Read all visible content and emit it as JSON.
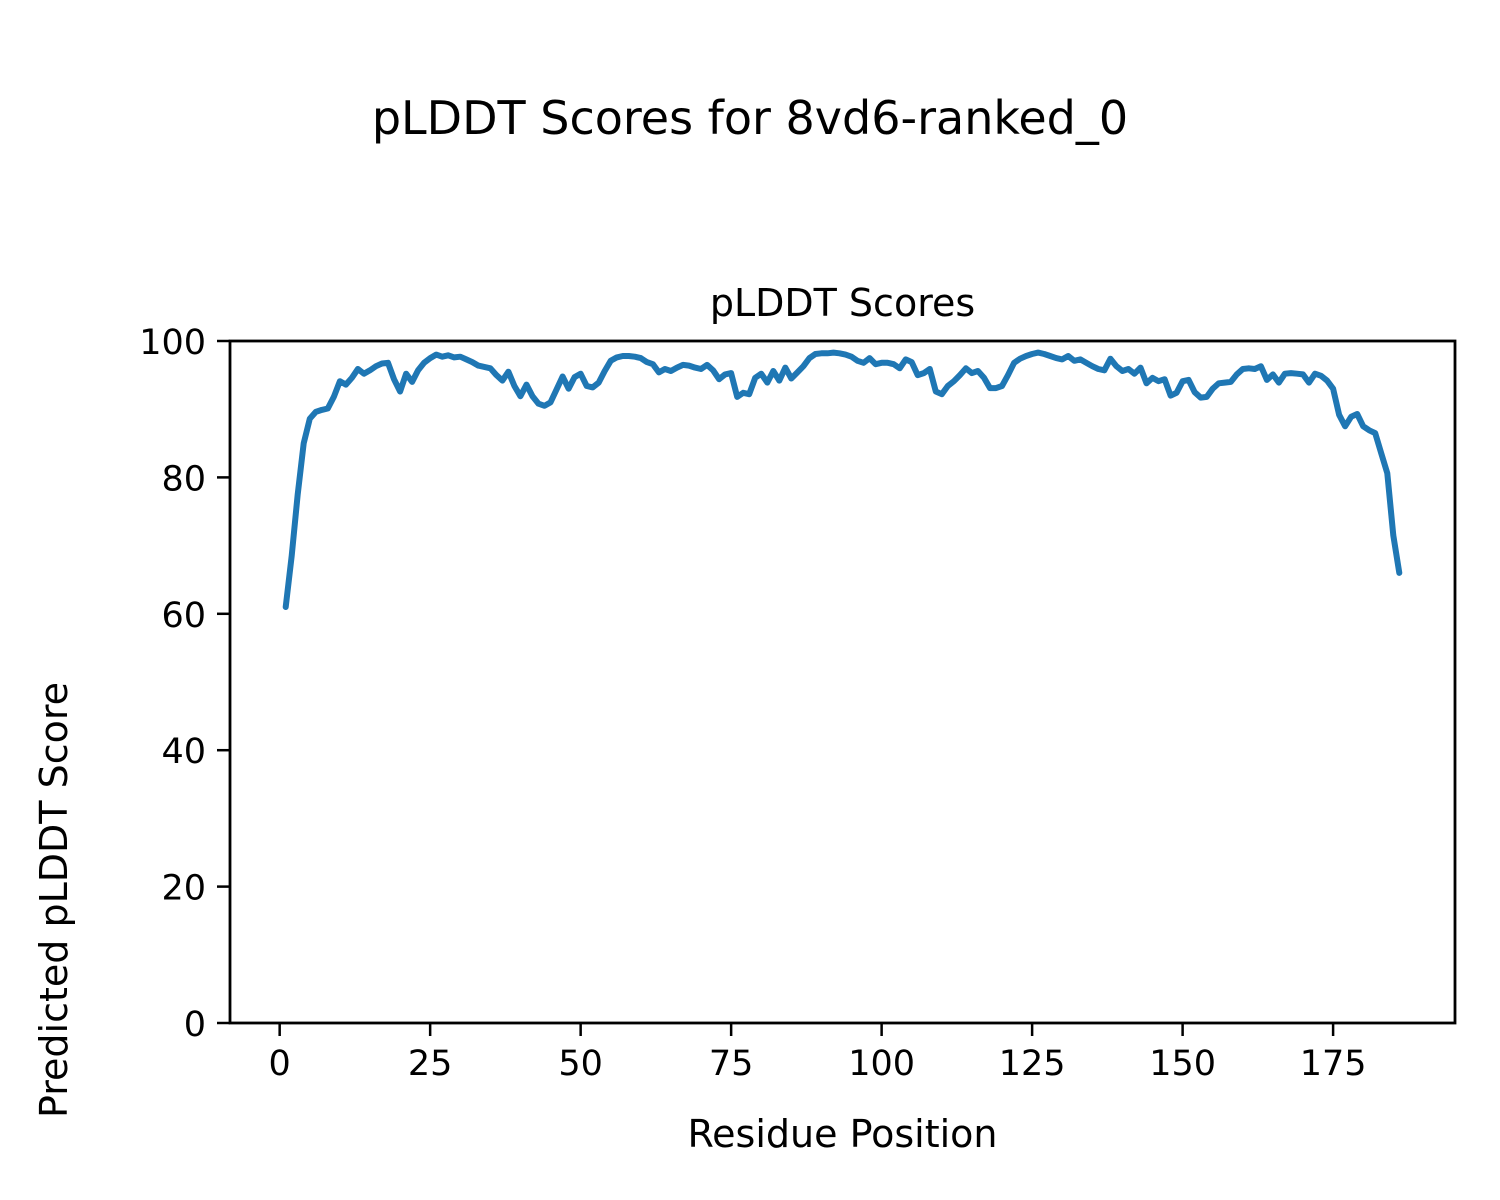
{
  "chart_data": {
    "type": "line",
    "title": "pLDDT Scores for 8vd6-ranked_0",
    "axes_title": "pLDDT Scores",
    "xlabel": "Residue Position",
    "ylabel": "Predicted pLDDT Score",
    "x_ticks": [
      0,
      25,
      50,
      75,
      100,
      125,
      150,
      175
    ],
    "y_ticks": [
      0,
      20,
      40,
      60,
      80,
      100
    ],
    "xlim": [
      -8.25,
      195.25
    ],
    "ylim": [
      0,
      100
    ],
    "grid": false,
    "legend": "none",
    "line_color": "#1f77b4",
    "axis_color": "#000000",
    "background": "#ffffff",
    "series": [
      {
        "name": "pLDDT",
        "x_start": 1,
        "x_step": 1,
        "y": [
          61.0,
          68.5,
          77.5,
          85.0,
          88.6,
          89.6,
          89.9,
          90.1,
          91.8,
          94.1,
          93.6,
          94.6,
          95.9,
          95.2,
          95.7,
          96.3,
          96.7,
          96.8,
          94.4,
          92.6,
          95.2,
          94.0,
          95.7,
          96.8,
          97.5,
          98.0,
          97.7,
          97.9,
          97.6,
          97.7,
          97.3,
          96.9,
          96.4,
          96.2,
          96.0,
          95.0,
          94.2,
          95.5,
          93.4,
          91.9,
          93.6,
          91.9,
          90.8,
          90.5,
          91.0,
          92.9,
          94.8,
          93.0,
          94.7,
          95.2,
          93.4,
          93.2,
          93.9,
          95.6,
          97.1,
          97.6,
          97.8,
          97.8,
          97.7,
          97.5,
          96.9,
          96.6,
          95.4,
          95.9,
          95.6,
          96.1,
          96.5,
          96.4,
          96.1,
          95.9,
          96.5,
          95.7,
          94.4,
          95.1,
          95.3,
          91.8,
          92.4,
          92.2,
          94.6,
          95.2,
          93.9,
          95.6,
          94.2,
          96.1,
          94.5,
          95.4,
          96.3,
          97.5,
          98.1,
          98.2,
          98.2,
          98.3,
          98.2,
          98.0,
          97.7,
          97.1,
          96.8,
          97.5,
          96.6,
          96.8,
          96.8,
          96.6,
          96.0,
          97.3,
          96.9,
          95.0,
          95.3,
          95.9,
          92.6,
          92.2,
          93.4,
          94.1,
          95.0,
          96.0,
          95.3,
          95.6,
          94.6,
          93.1,
          93.1,
          93.4,
          95.0,
          96.8,
          97.4,
          97.8,
          98.1,
          98.3,
          98.1,
          97.8,
          97.5,
          97.3,
          97.8,
          97.1,
          97.3,
          96.8,
          96.3,
          95.9,
          95.7,
          97.4,
          96.3,
          95.6,
          95.9,
          95.2,
          96.1,
          93.8,
          94.6,
          94.1,
          94.4,
          92.0,
          92.4,
          94.1,
          94.3,
          92.5,
          91.7,
          91.8,
          93.0,
          93.8,
          93.9,
          94.0,
          95.1,
          95.9,
          96.0,
          95.9,
          96.3,
          94.3,
          95.1,
          93.9,
          95.2,
          95.3,
          95.2,
          95.1,
          93.9,
          95.2,
          94.9,
          94.2,
          93.0,
          89.2,
          87.5,
          88.9,
          89.3,
          87.5,
          86.9,
          86.5,
          83.5,
          80.6,
          71.5,
          66.0
        ]
      }
    ]
  }
}
